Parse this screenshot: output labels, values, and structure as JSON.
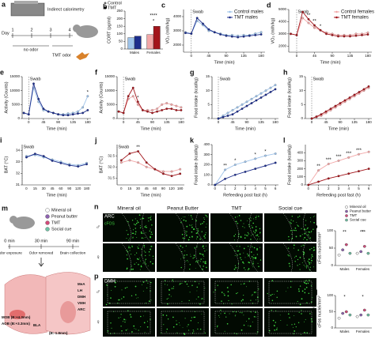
{
  "panel_a": {
    "label": "a",
    "device": "Indirect calorimetry",
    "day": "Day",
    "days": [
      "1",
      "2",
      "3",
      "4"
    ],
    "phases": [
      "no odor",
      "TMT odor"
    ]
  },
  "chart_data": [
    {
      "type": "bar",
      "label": "b",
      "ylabel": "CORT (pg/ml)",
      "categories": [
        "Males",
        "Females"
      ],
      "ylim": [
        0,
        250
      ],
      "yticks": [
        0,
        50,
        100,
        150,
        200,
        250
      ],
      "legend": "upper left",
      "series": [
        {
          "name": "Control",
          "color": "#666666",
          "colors": [
            "#9ec3ea",
            "#f3a7a7"
          ],
          "values": [
            75,
            95
          ]
        },
        {
          "name": "TMT",
          "color": "#000000",
          "colors": [
            "#1c2d8c",
            "#a3151b"
          ],
          "values": [
            85,
            150
          ]
        }
      ],
      "annotations": [
        {
          "text": "****",
          "category": 1
        },
        {
          "text": "*",
          "category": 1
        }
      ]
    },
    {
      "type": "line",
      "label": "c",
      "ylabel": "VO₂ (ml/h/kg)",
      "xlabel": "Time (min)",
      "x": [
        -15,
        0,
        15,
        30,
        45,
        60,
        75,
        90,
        105,
        120,
        135,
        150,
        165,
        180
      ],
      "xlim": [
        -20,
        190
      ],
      "xticks": [
        0,
        45,
        90,
        135,
        180
      ],
      "ylim": [
        1500,
        4500
      ],
      "yticks": [
        2000,
        3000,
        4000
      ],
      "vline": {
        "label": "Swab",
        "x": 0
      },
      "legend": "upper right",
      "series": [
        {
          "name": "Control males",
          "color": "#9ec3ea",
          "values": [
            2900,
            2800,
            3700,
            3400,
            3000,
            2900,
            2800,
            2700,
            2700,
            2650,
            2700,
            2700,
            2800,
            2900
          ]
        },
        {
          "name": "TMT males",
          "color": "#1c2d8c",
          "values": [
            2850,
            2800,
            3900,
            3500,
            3100,
            2900,
            2750,
            2650,
            2600,
            2550,
            2600,
            2650,
            2700,
            2750
          ]
        }
      ]
    },
    {
      "type": "line",
      "label": "d",
      "ylabel": "VO₂ (ml/h/kg)",
      "xlabel": "Time (min)",
      "x": [
        -15,
        0,
        15,
        30,
        45,
        60,
        75,
        90,
        105,
        120,
        135,
        150,
        165,
        180
      ],
      "xlim": [
        -20,
        190
      ],
      "xticks": [
        0,
        45,
        90,
        135,
        180
      ],
      "ylim": [
        1500,
        5000
      ],
      "yticks": [
        2000,
        3000,
        4000,
        5000
      ],
      "vline": {
        "label": "Swab",
        "x": 0
      },
      "legend": "upper right",
      "series": [
        {
          "name": "Control females",
          "color": "#f3a7a7",
          "values": [
            3000,
            2900,
            4300,
            3900,
            3500,
            3300,
            3100,
            3000,
            2900,
            2900,
            2900,
            3000,
            3000,
            3100
          ]
        },
        {
          "name": "TMT females",
          "color": "#a3151b",
          "values": [
            3000,
            2900,
            4800,
            4200,
            3700,
            3300,
            3000,
            2900,
            2800,
            2800,
            2800,
            2850,
            2900,
            2950
          ]
        }
      ],
      "annotations": [
        {
          "text": "**",
          "x": 30
        },
        {
          "text": "**",
          "x": 45
        },
        {
          "text": "*",
          "x": 60
        }
      ]
    },
    {
      "type": "line",
      "label": "e",
      "ylabel": "Activity (Counts)",
      "xlabel": "Time (min)",
      "x": [
        -15,
        0,
        15,
        30,
        45,
        60,
        75,
        90,
        105,
        120,
        135,
        150,
        165,
        180
      ],
      "xlim": [
        -20,
        190
      ],
      "xticks": [
        0,
        45,
        90,
        135,
        180
      ],
      "ylim": [
        0,
        15000
      ],
      "yticks": [
        0,
        5000,
        10000,
        15000
      ],
      "vline": {
        "label": "Swab",
        "x": 0
      },
      "series": [
        {
          "color": "#9ec3ea",
          "values": [
            2000,
            1500,
            11000,
            6000,
            3000,
            2500,
            2000,
            1500,
            1500,
            1800,
            2000,
            2500,
            4000,
            8000
          ]
        },
        {
          "color": "#1c2d8c",
          "values": [
            2000,
            1500,
            12500,
            7000,
            3500,
            2500,
            2000,
            1500,
            1200,
            1200,
            1500,
            1800,
            2000,
            3000
          ]
        }
      ],
      "annotations": [
        {
          "text": "*",
          "x": 180
        }
      ]
    },
    {
      "type": "line",
      "label": "f",
      "ylabel": "Activity (Counts)",
      "xlabel": "Time (min)",
      "x": [
        -15,
        0,
        15,
        30,
        45,
        60,
        75,
        90,
        105,
        120,
        135,
        150,
        165,
        180
      ],
      "xlim": [
        -20,
        190
      ],
      "xticks": [
        0,
        45,
        90,
        135,
        180
      ],
      "ylim": [
        0,
        15000
      ],
      "yticks": [
        0,
        5000,
        10000,
        15000
      ],
      "vline": {
        "label": "Swab",
        "x": 0
      },
      "series": [
        {
          "color": "#f3a7a7",
          "values": [
            2500,
            2000,
            7000,
            8000,
            5000,
            3000,
            3000,
            3000,
            3500,
            5000,
            5500,
            5000,
            4500,
            4000
          ]
        },
        {
          "color": "#a3151b",
          "values": [
            2500,
            2000,
            8000,
            11000,
            6000,
            3000,
            2500,
            2000,
            2500,
            3000,
            3500,
            3500,
            3000,
            3000
          ]
        }
      ],
      "annotations": [
        {
          "text": "*",
          "x": 45
        }
      ]
    },
    {
      "type": "line",
      "label": "g",
      "ylabel": "Food intake (kcal/kg)",
      "xlabel": "Time (min)",
      "x": [
        -15,
        0,
        15,
        30,
        45,
        60,
        75,
        90,
        105,
        120,
        135,
        150,
        165,
        180
      ],
      "xlim": [
        -20,
        190
      ],
      "xticks": [
        0,
        45,
        90,
        135,
        180
      ],
      "ylim": [
        0,
        15
      ],
      "yticks": [
        0,
        5,
        10,
        15
      ],
      "vline": {
        "label": "Swab",
        "x": 0
      },
      "series": [
        {
          "color": "#9ec3ea",
          "values": [
            null,
            0,
            1,
            2,
            3,
            4,
            5,
            6,
            7,
            8,
            9,
            10,
            11,
            12
          ]
        },
        {
          "color": "#1c2d8c",
          "values": [
            null,
            0,
            0.5,
            1,
            1.5,
            2.5,
            3.5,
            4.5,
            5.5,
            6.5,
            7.5,
            8.5,
            9.5,
            10.5
          ]
        }
      ]
    },
    {
      "type": "line",
      "label": "h",
      "ylabel": "Food intake (kcal/kg)",
      "xlabel": "Time (min)",
      "x": [
        -15,
        0,
        15,
        30,
        45,
        60,
        75,
        90,
        105,
        120,
        135,
        150,
        165,
        180
      ],
      "xlim": [
        -20,
        190
      ],
      "xticks": [
        0,
        45,
        90,
        135,
        180
      ],
      "ylim": [
        0,
        15
      ],
      "yticks": [
        0,
        5,
        10,
        15
      ],
      "vline": {
        "label": "Swab",
        "x": 0
      },
      "series": [
        {
          "color": "#f3a7a7",
          "values": [
            null,
            0,
            0.5,
            1,
            2,
            3,
            4,
            5,
            6,
            7,
            8,
            9,
            10,
            11
          ]
        },
        {
          "color": "#a3151b",
          "values": [
            null,
            0,
            0.7,
            1.5,
            2.5,
            3.5,
            4.5,
            5.5,
            6.5,
            7.5,
            8.5,
            9.5,
            10.5,
            11.5
          ]
        }
      ]
    },
    {
      "type": "line",
      "label": "i",
      "ylabel": "BAT (°C)",
      "xlabel": "Time (min)",
      "categories": [
        "0",
        "15",
        "30",
        "45",
        "60",
        "90",
        "120",
        "180"
      ],
      "ylim": [
        31,
        34.5
      ],
      "yticks": [
        31,
        32,
        33,
        34
      ],
      "vline": {
        "label": "Swab",
        "x": 0
      },
      "series": [
        {
          "color": "#9ec3ea",
          "values": [
            33.5,
            33.6,
            33.4,
            33.2,
            33.0,
            32.8,
            32.7,
            32.9
          ]
        },
        {
          "color": "#1c2d8c",
          "values": [
            33.4,
            33.7,
            33.5,
            33.1,
            32.9,
            32.7,
            32.6,
            32.8
          ]
        }
      ]
    },
    {
      "type": "line",
      "label": "j",
      "ylabel": "BAT (°C)",
      "xlabel": "Time (min)",
      "categories": [
        "0",
        "15",
        "30",
        "45",
        "60",
        "90",
        "120",
        "180"
      ],
      "ylim": [
        31.2,
        33
      ],
      "yticks": [
        31.5,
        {
          "value": 32,
          "label": "32.0"
        },
        32.5
      ],
      "vline": {
        "label": "Swab",
        "x": 0
      },
      "series": [
        {
          "color": "#f3a7a7",
          "values": [
            32.2,
            32.3,
            32.2,
            32.0,
            31.9,
            31.8,
            31.8,
            31.9
          ]
        },
        {
          "color": "#a3151b",
          "values": [
            32.3,
            32.6,
            32.7,
            32.2,
            31.9,
            31.7,
            31.6,
            31.7
          ]
        }
      ],
      "annotations": [
        {
          "text": "**",
          "x": 2
        }
      ]
    },
    {
      "type": "line",
      "label": "k",
      "ylabel": "Food intake (kcal/kg)",
      "xlabel": "Refeeding post fast (h)",
      "x": [
        0,
        1,
        2,
        3,
        4,
        5,
        6
      ],
      "xlim": [
        -0.3,
        6.3
      ],
      "xticks": [
        0,
        1,
        2,
        3,
        4,
        5,
        6
      ],
      "ylim": [
        0,
        400
      ],
      "yticks": [
        0,
        100,
        200,
        300,
        400
      ],
      "series": [
        {
          "color": "#9ec3ea",
          "values": [
            0,
            150,
            200,
            230,
            260,
            290,
            310
          ]
        },
        {
          "color": "#1c2d8c",
          "values": [
            0,
            60,
            100,
            130,
            160,
            190,
            220
          ]
        }
      ],
      "annotations": [
        {
          "text": "**",
          "x": 1
        },
        {
          "text": "*",
          "x": 2
        },
        {
          "text": "*",
          "x": 4
        },
        {
          "text": "*",
          "x": 5
        }
      ]
    },
    {
      "type": "line",
      "label": "l",
      "ylabel": "Food intake (kcal/kg)",
      "xlabel": "Refeeding post fast (h)",
      "x": [
        0,
        1,
        2,
        3,
        4,
        5,
        6
      ],
      "xlim": [
        -0.3,
        6.3
      ],
      "xticks": [
        0,
        1,
        2,
        3,
        4,
        5,
        6
      ],
      "ylim": [
        0,
        500
      ],
      "yticks": [
        0,
        100,
        200,
        300,
        400
      ],
      "series": [
        {
          "color": "#f3a7a7",
          "values": [
            0,
            180,
            260,
            300,
            340,
            380,
            410
          ]
        },
        {
          "color": "#a3151b",
          "values": [
            0,
            40,
            80,
            110,
            140,
            170,
            200
          ]
        }
      ],
      "annotations": [
        {
          "text": "**",
          "x": 1
        },
        {
          "text": "***",
          "x": 2
        },
        {
          "text": "***",
          "x": 3
        },
        {
          "text": "***",
          "x": 4
        },
        {
          "text": "***",
          "x": 5
        }
      ]
    },
    {
      "type": "dot",
      "label": "o",
      "region": "ARC",
      "ylabel": "cFos nuclei/mm²",
      "categories": [
        "Males",
        "Females"
      ],
      "ylim": [
        0,
        100
      ],
      "yticks": [
        0,
        50,
        100
      ],
      "legend": "upper right",
      "series": [
        {
          "name": "Mineral oil",
          "color": "#ffffff",
          "values": [
            30,
            35
          ]
        },
        {
          "name": "Peanut butter",
          "color": "#8e62b0",
          "values": [
            45,
            40
          ]
        },
        {
          "name": "TMT",
          "color": "#d34a7a",
          "values": [
            60,
            55
          ]
        },
        {
          "name": "Social cue",
          "color": "#6fc3a5",
          "values": [
            35,
            35
          ]
        }
      ],
      "annotations": [
        {
          "text": "**",
          "category": 0
        },
        {
          "text": "***",
          "category": 1
        },
        {
          "text": "*",
          "category": 1
        }
      ]
    },
    {
      "type": "dot",
      "label": "q",
      "region": "DMH",
      "ylabel": "cFos nuclei/mm²",
      "categories": [
        "Males",
        "Females"
      ],
      "ylim": [
        0,
        100
      ],
      "yticks": [
        0,
        50,
        100
      ],
      "series": [
        {
          "color": "#ffffff",
          "values": [
            30,
            35
          ]
        },
        {
          "color": "#8e62b0",
          "values": [
            45,
            40
          ]
        },
        {
          "color": "#d34a7a",
          "values": [
            50,
            55
          ]
        },
        {
          "color": "#6fc3a5",
          "values": [
            40,
            40
          ]
        }
      ],
      "annotations": [
        {
          "text": "*",
          "category": 0
        },
        {
          "text": "*",
          "category": 1
        }
      ]
    }
  ],
  "panel_m": {
    "label": "m",
    "legend": [
      "Mineral oil",
      "Peanut butter",
      "TMT",
      "Social cue"
    ],
    "times": [
      "0 min",
      "30 min",
      "90 min"
    ],
    "events": [
      "Odor exposure",
      "Odor removed",
      "Brain collection"
    ],
    "regions": [
      "MOB (B:+4.3mm)",
      "AOB (B:+3.3mm)",
      "BLA",
      "(B:-1.8mm)",
      "MeA",
      "LH",
      "DMH",
      "VMH",
      "ARC"
    ]
  },
  "panel_n": {
    "label": "n",
    "columns": [
      "Mineral oil",
      "Peanut Butter",
      "TMT",
      "Social cue"
    ],
    "region": "ARC",
    "stain": "cFOS",
    "sexes": [
      "♂",
      "♀"
    ]
  },
  "panel_p": {
    "label": "p",
    "region": "DMH",
    "sexes": [
      "♂",
      "♀"
    ]
  }
}
